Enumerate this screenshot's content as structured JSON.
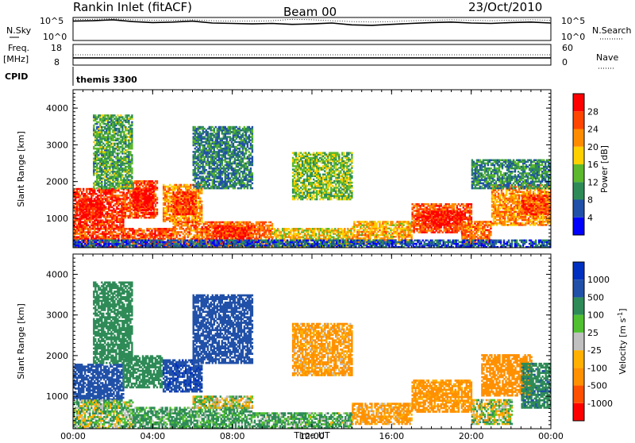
{
  "header": {
    "station": "Rankin Inlet (fitACF)",
    "beam": "Beam 00",
    "date": "23/Oct/2010"
  },
  "labels": {
    "nsky": "N.Sky",
    "nsky_ticks": [
      "10^5",
      "10^0"
    ],
    "nsearch": "N.Search",
    "freq": "Freq.",
    "freq_unit": "[MHz]",
    "freq_ticks": [
      "18",
      "8"
    ],
    "nave": "Nave",
    "nave_ticks": [
      "60",
      "0"
    ],
    "cpid_label": "CPID",
    "cpid_value": "themis 3300",
    "ylabel": "Slant Range [km]",
    "xlabel": "Time UT"
  },
  "colors": {
    "power": [
      "#0000ff",
      "#2050a8",
      "#2e8b57",
      "#5cb82c",
      "#ffd000",
      "#ff8c00",
      "#ff4500",
      "#ff0000"
    ],
    "velocity": [
      "#ff0000",
      "#ff5000",
      "#ff9000",
      "#ffb000",
      "#c0c0c0",
      "#50c030",
      "#2e8b57",
      "#2050a8",
      "#0030c0"
    ]
  },
  "chart_data": [
    {
      "type": "line",
      "panel": "nsky-nsearch",
      "series": [
        {
          "name": "N.Sky",
          "values": [
            4.2,
            4.3,
            4.5,
            4.1,
            3.9,
            4.0,
            4.2,
            3.8,
            3.7,
            3.6,
            3.7,
            3.5,
            3.6,
            3.8,
            3.4,
            3.3,
            3.5,
            3.7,
            3.9,
            4.0,
            3.8,
            3.7,
            3.9,
            4.0,
            3.8
          ]
        },
        {
          "name": "N.Search",
          "values": [
            4.5,
            4.6,
            4.7,
            4.5,
            4.4,
            4.4,
            4.5,
            4.3,
            4.2,
            4.2,
            4.3,
            4.6,
            4.5,
            4.3,
            4.1,
            4.0,
            4.1,
            4.3,
            4.4,
            4.5,
            4.4,
            4.3,
            4.4,
            4.5,
            4.4
          ]
        }
      ],
      "x": [
        0,
        1,
        2,
        3,
        4,
        5,
        6,
        7,
        8,
        9,
        10,
        11,
        12,
        13,
        14,
        15,
        16,
        17,
        18,
        19,
        20,
        21,
        22,
        23,
        24
      ],
      "ylim": [
        0,
        5
      ]
    },
    {
      "type": "line",
      "panel": "freq-nave",
      "series": [
        {
          "name": "Freq.",
          "values": [
            11.5,
            11.5,
            11.5,
            11.5,
            11.5,
            11.5,
            11.5,
            11.5,
            11.5,
            11.5,
            11.5,
            11.5,
            11.5,
            11.5,
            11.5,
            11.5,
            11.5,
            11.5,
            11.5,
            11.5,
            11.5,
            11.5,
            11.5,
            11.5,
            11.5
          ]
        },
        {
          "name": "Nave",
          "values": [
            30,
            30,
            30,
            30,
            30,
            30,
            30,
            30,
            30,
            30,
            30,
            30,
            30,
            30,
            30,
            30,
            30,
            30,
            30,
            30,
            30,
            30,
            30,
            30,
            30
          ]
        }
      ],
      "x": [
        0,
        1,
        2,
        3,
        4,
        5,
        6,
        7,
        8,
        9,
        10,
        11,
        12,
        13,
        14,
        15,
        16,
        17,
        18,
        19,
        20,
        21,
        22,
        23,
        24
      ],
      "ylim": [
        8,
        18
      ]
    },
    {
      "type": "heatmap",
      "panel": "power",
      "xlabel": "Time UT",
      "ylabel": "Slant Range [km]",
      "x_ticks": [
        "00:00",
        "04:00",
        "08:00",
        "12:00",
        "16:00",
        "20:00",
        "00:00"
      ],
      "xlim": [
        0,
        24
      ],
      "y_ticks": [
        1000,
        2000,
        3000,
        4000
      ],
      "ylim": [
        200,
        4500
      ],
      "colorbar": {
        "label": "Power [dB]",
        "ticks": [
          4,
          8,
          12,
          16,
          20,
          24,
          28
        ],
        "range": [
          0,
          32
        ]
      },
      "patches": [
        {
          "t": [
            0.0,
            2.5
          ],
          "r": [
            700,
            1800
          ],
          "v": 28
        },
        {
          "t": [
            0.3,
            1.5
          ],
          "r": [
            1000,
            1500
          ],
          "v": 30
        },
        {
          "t": [
            2.5,
            4.2
          ],
          "r": [
            1000,
            2000
          ],
          "v": 26
        },
        {
          "t": [
            3.0,
            4.0
          ],
          "r": [
            1200,
            1800
          ],
          "v": 30
        },
        {
          "t": [
            4.5,
            6.5
          ],
          "r": [
            900,
            1900
          ],
          "v": 22
        },
        {
          "t": [
            5.0,
            6.2
          ],
          "r": [
            1100,
            1700
          ],
          "v": 27
        },
        {
          "t": [
            0.0,
            5.0
          ],
          "r": [
            200,
            700
          ],
          "v": 26
        },
        {
          "t": [
            5.0,
            10.0
          ],
          "r": [
            200,
            900
          ],
          "v": 24
        },
        {
          "t": [
            7.0,
            9.0
          ],
          "r": [
            400,
            800
          ],
          "v": 28
        },
        {
          "t": [
            10.0,
            14.0
          ],
          "r": [
            200,
            700
          ],
          "v": 18
        },
        {
          "t": [
            14.0,
            17.0
          ],
          "r": [
            300,
            900
          ],
          "v": 20
        },
        {
          "t": [
            17.0,
            20.0
          ],
          "r": [
            600,
            1400
          ],
          "v": 26
        },
        {
          "t": [
            17.5,
            19.5
          ],
          "r": [
            800,
            1200
          ],
          "v": 30
        },
        {
          "t": [
            19.5,
            21.0
          ],
          "r": [
            300,
            900
          ],
          "v": 24
        },
        {
          "t": [
            21.0,
            24.0
          ],
          "r": [
            800,
            1900
          ],
          "v": 22
        },
        {
          "t": [
            22.5,
            24.0
          ],
          "r": [
            1100,
            1600
          ],
          "v": 27
        },
        {
          "t": [
            1.0,
            3.0
          ],
          "r": [
            1800,
            3800
          ],
          "v": 12
        },
        {
          "t": [
            6.0,
            9.0
          ],
          "r": [
            1800,
            3500
          ],
          "v": 9
        },
        {
          "t": [
            11.0,
            14.0
          ],
          "r": [
            1500,
            2800
          ],
          "v": 14
        },
        {
          "t": [
            20.0,
            24.0
          ],
          "r": [
            1800,
            2600
          ],
          "v": 10
        },
        {
          "t": [
            0.0,
            24.0
          ],
          "r": [
            200,
            400
          ],
          "v": 6
        }
      ]
    },
    {
      "type": "heatmap",
      "panel": "velocity",
      "xlabel": "Time UT",
      "ylabel": "Slant Range [km]",
      "x_ticks": [
        "00:00",
        "04:00",
        "08:00",
        "12:00",
        "16:00",
        "20:00",
        "00:00"
      ],
      "xlim": [
        0,
        24
      ],
      "y_ticks": [
        1000,
        2000,
        3000,
        4000
      ],
      "ylim": [
        200,
        4500
      ],
      "colorbar": {
        "label": "Velocity [m s^-1]",
        "ticks": [
          1000,
          500,
          100,
          25,
          -25,
          -100,
          -500,
          -1000
        ],
        "range": [
          -1000,
          1000
        ]
      },
      "patches": [
        {
          "t": [
            0.0,
            2.5
          ],
          "r": [
            900,
            1800
          ],
          "v": 800
        },
        {
          "t": [
            2.5,
            4.5
          ],
          "r": [
            1200,
            2000
          ],
          "v": 300
        },
        {
          "t": [
            4.5,
            6.5
          ],
          "r": [
            1100,
            1900
          ],
          "v": 900
        },
        {
          "t": [
            0.0,
            3.0
          ],
          "r": [
            200,
            900
          ],
          "v": 60
        },
        {
          "t": [
            3.0,
            9.0
          ],
          "r": [
            200,
            700
          ],
          "v": 150
        },
        {
          "t": [
            6.0,
            9.0
          ],
          "r": [
            700,
            1000
          ],
          "v": 0
        },
        {
          "t": [
            9.0,
            14.0
          ],
          "r": [
            200,
            600
          ],
          "v": 120
        },
        {
          "t": [
            14.0,
            17.0
          ],
          "r": [
            300,
            800
          ],
          "v": -150
        },
        {
          "t": [
            17.0,
            20.0
          ],
          "r": [
            600,
            1400
          ],
          "v": -200
        },
        {
          "t": [
            20.5,
            23.0
          ],
          "r": [
            1000,
            2000
          ],
          "v": -250
        },
        {
          "t": [
            20.0,
            22.0
          ],
          "r": [
            300,
            900
          ],
          "v": 10
        },
        {
          "t": [
            22.5,
            24.0
          ],
          "r": [
            700,
            1800
          ],
          "v": 400
        },
        {
          "t": [
            1.0,
            3.0
          ],
          "r": [
            1800,
            3800
          ],
          "v": 300
        },
        {
          "t": [
            6.0,
            9.0
          ],
          "r": [
            1800,
            3500
          ],
          "v": 700
        },
        {
          "t": [
            11.0,
            14.0
          ],
          "r": [
            1500,
            2800
          ],
          "v": -150
        }
      ]
    }
  ]
}
